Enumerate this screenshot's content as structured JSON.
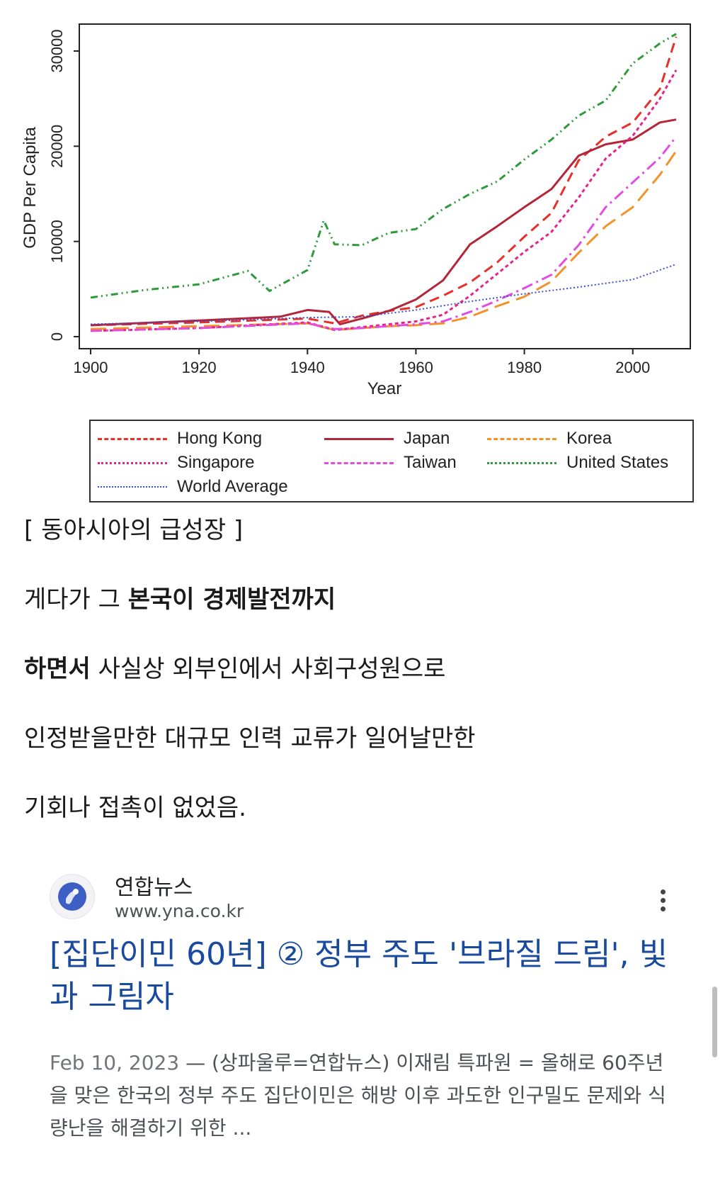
{
  "chart_data": {
    "type": "line",
    "xlabel": "Year",
    "ylabel": "GDP Per Capita",
    "xlim": [
      1900,
      2008
    ],
    "ylim": [
      0,
      33000
    ],
    "xticks": [
      1900,
      1920,
      1940,
      1960,
      1980,
      2000
    ],
    "yticks": [
      0,
      10000,
      20000,
      30000
    ],
    "legend_position": "bottom-outside",
    "grid": false,
    "series": [
      {
        "name": "Hong Kong",
        "color": "#e8302a",
        "dash": "dashed",
        "x": [
          1900,
          1920,
          1940,
          1945,
          1950,
          1955,
          1960,
          1965,
          1970,
          1975,
          1980,
          1985,
          1990,
          1995,
          2000,
          2005,
          2008
        ],
        "y": [
          1200,
          1500,
          1900,
          1400,
          2200,
          2700,
          3100,
          4300,
          5700,
          7800,
          10500,
          13000,
          18500,
          21000,
          22500,
          26000,
          31500
        ]
      },
      {
        "name": "Japan",
        "color": "#b3263a",
        "dash": "solid",
        "x": [
          1900,
          1920,
          1935,
          1940,
          1944,
          1946,
          1950,
          1955,
          1960,
          1965,
          1970,
          1975,
          1980,
          1985,
          1990,
          1995,
          2000,
          2005,
          2008
        ],
        "y": [
          1200,
          1700,
          2100,
          2800,
          2600,
          1300,
          1900,
          2700,
          3900,
          5900,
          9700,
          11600,
          13600,
          15500,
          19000,
          20200,
          20700,
          22500,
          22800
        ]
      },
      {
        "name": "Korea",
        "color": "#f4922a",
        "dash": "longdash",
        "x": [
          1900,
          1920,
          1940,
          1945,
          1950,
          1955,
          1960,
          1965,
          1970,
          1975,
          1980,
          1985,
          1990,
          1995,
          2000,
          2005,
          2008
        ],
        "y": [
          800,
          1100,
          1400,
          700,
          900,
          1100,
          1200,
          1400,
          2100,
          3200,
          4200,
          5800,
          8800,
          11600,
          13600,
          17000,
          19500
        ]
      },
      {
        "name": "Singapore",
        "color": "#e6238a",
        "dash": "dotted",
        "x": [
          1900,
          1920,
          1940,
          1945,
          1950,
          1955,
          1960,
          1965,
          1970,
          1975,
          1980,
          1985,
          1990,
          1995,
          2000,
          2005,
          2008
        ],
        "y": [
          600,
          900,
          1500,
          700,
          1000,
          1300,
          1600,
          2300,
          4300,
          6600,
          8900,
          11000,
          14600,
          18700,
          21100,
          25000,
          28000
        ]
      },
      {
        "name": "Taiwan",
        "color": "#e14de1",
        "dash": "dashdot",
        "x": [
          1900,
          1920,
          1940,
          1945,
          1950,
          1955,
          1960,
          1965,
          1970,
          1975,
          1980,
          1985,
          1990,
          1995,
          2000,
          2005,
          2008
        ],
        "y": [
          600,
          900,
          1400,
          800,
          900,
          1100,
          1300,
          1600,
          2600,
          3800,
          5100,
          6500,
          9600,
          13600,
          16200,
          18800,
          21000
        ]
      },
      {
        "name": "United States",
        "color": "#2e9a3c",
        "dash": "dashdotdot",
        "x": [
          1900,
          1910,
          1920,
          1929,
          1933,
          1940,
          1943,
          1945,
          1950,
          1955,
          1960,
          1965,
          1970,
          1975,
          1980,
          1985,
          1990,
          1995,
          2000,
          2005,
          2008
        ],
        "y": [
          4100,
          4900,
          5500,
          6900,
          4800,
          7000,
          12200,
          9700,
          9600,
          10900,
          11300,
          13400,
          15000,
          16300,
          18600,
          20700,
          23200,
          24800,
          28700,
          30800,
          31800
        ]
      },
      {
        "name": "World Average",
        "color": "#3a4fd6",
        "dash": "fine-dotted",
        "x": [
          1900,
          1920,
          1940,
          1950,
          1960,
          1970,
          1980,
          1990,
          2000,
          2008
        ],
        "y": [
          1300,
          1600,
          2000,
          2100,
          2800,
          3700,
          4500,
          5200,
          6000,
          7600
        ]
      }
    ]
  },
  "caption": "[ 동아시아의 급성장 ]",
  "paragraphs": {
    "p1_normal": "게다가 그 ",
    "p1_bold": "본국이 경제발전까지",
    "p2_bold": "하면서",
    "p2_normal": " 사실상 외부인에서 사회구성원으로",
    "p3": "인정받을만한 대규모 인력 교류가 일어날만한",
    "p4": "기회나 접촉이 없었음."
  },
  "search_result": {
    "site_name": "연합뉴스",
    "site_url": "www.yna.co.kr",
    "favicon_icon": "yonhap-logo",
    "menu_icon": "more-vert-icon",
    "title": "[집단이민 60년] ② 정부 주도 '브라질 드림', 빛과 그림자",
    "date": "Feb 10, 2023",
    "snippet": " — (상파울루=연합뉴스) 이재림 특파원 = 올해로 60주년을 맞은 한국의 정부 주도 집단이민은 해방 이후 과도한 인구밀도 문제와 식량난을 해결하기 위한 ..."
  }
}
